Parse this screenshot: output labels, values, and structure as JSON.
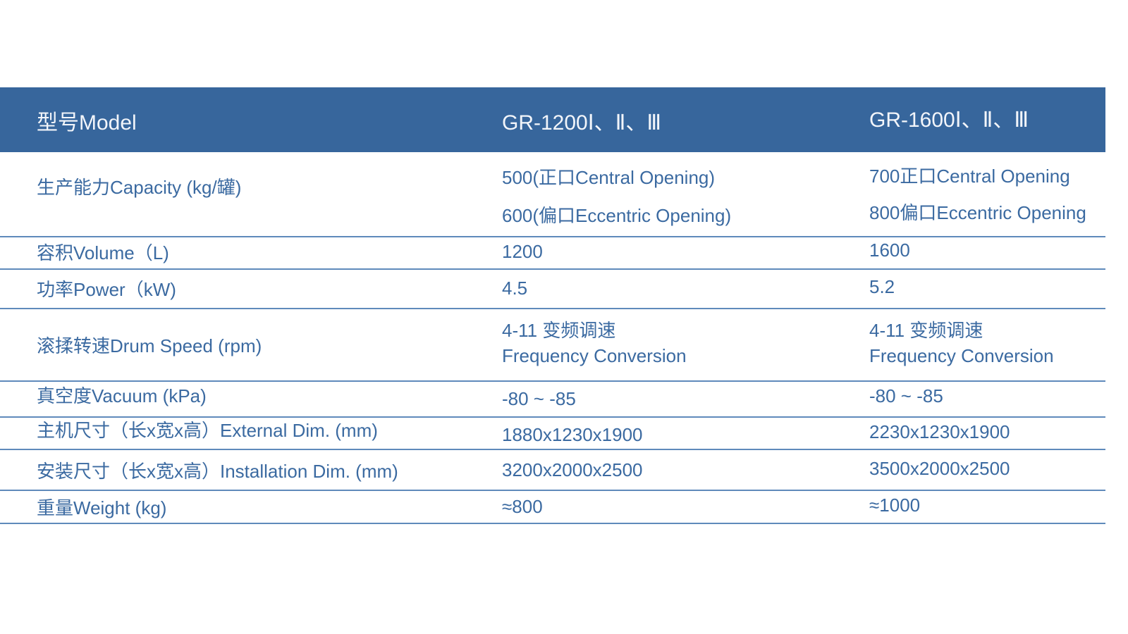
{
  "header": {
    "label": "型号Model",
    "models": [
      "GR-1200Ⅰ、Ⅱ、Ⅲ",
      "GR-1600Ⅰ、Ⅱ、Ⅲ"
    ]
  },
  "rows": [
    {
      "label": "生产能力Capacity (kg/罐)",
      "v1": [
        "500(正口Central Opening)",
        "600(偏口Eccentric Opening)"
      ],
      "v2": [
        "700正口Central Opening",
        "800偏口Eccentric Opening"
      ]
    },
    {
      "label": "容积Volume（L)",
      "v1": [
        "1200"
      ],
      "v2": [
        "1600"
      ]
    },
    {
      "label": "功率Power（kW)",
      "v1": [
        "4.5"
      ],
      "v2": [
        "5.2"
      ]
    },
    {
      "label": "滚揉转速Drum Speed (rpm)",
      "v1": [
        "4-11 变频调速",
        "Frequency Conversion"
      ],
      "v2": [
        "4-11 变频调速",
        "Frequency Conversion"
      ]
    },
    {
      "label": "真空度Vacuum (kPa)",
      "v1": [
        "-80 ~ -85"
      ],
      "v2": [
        "-80 ~ -85"
      ]
    },
    {
      "label": "主机尺寸（长x宽x高）External Dim. (mm)",
      "v1": [
        "1880x1230x1900"
      ],
      "v2": [
        "2230x1230x1900"
      ]
    },
    {
      "label": "安装尺寸（长x宽x高）Installation Dim. (mm)",
      "v1": [
        "3200x2000x2500"
      ],
      "v2": [
        "3500x2000x2500"
      ]
    },
    {
      "label": "重量Weight (kg)",
      "v1": [
        "≈800"
      ],
      "v2": [
        "≈1000"
      ]
    }
  ],
  "colors": {
    "header_bg": "#37669c",
    "text": "#3b6aa1",
    "rule": "#5f8abb"
  }
}
